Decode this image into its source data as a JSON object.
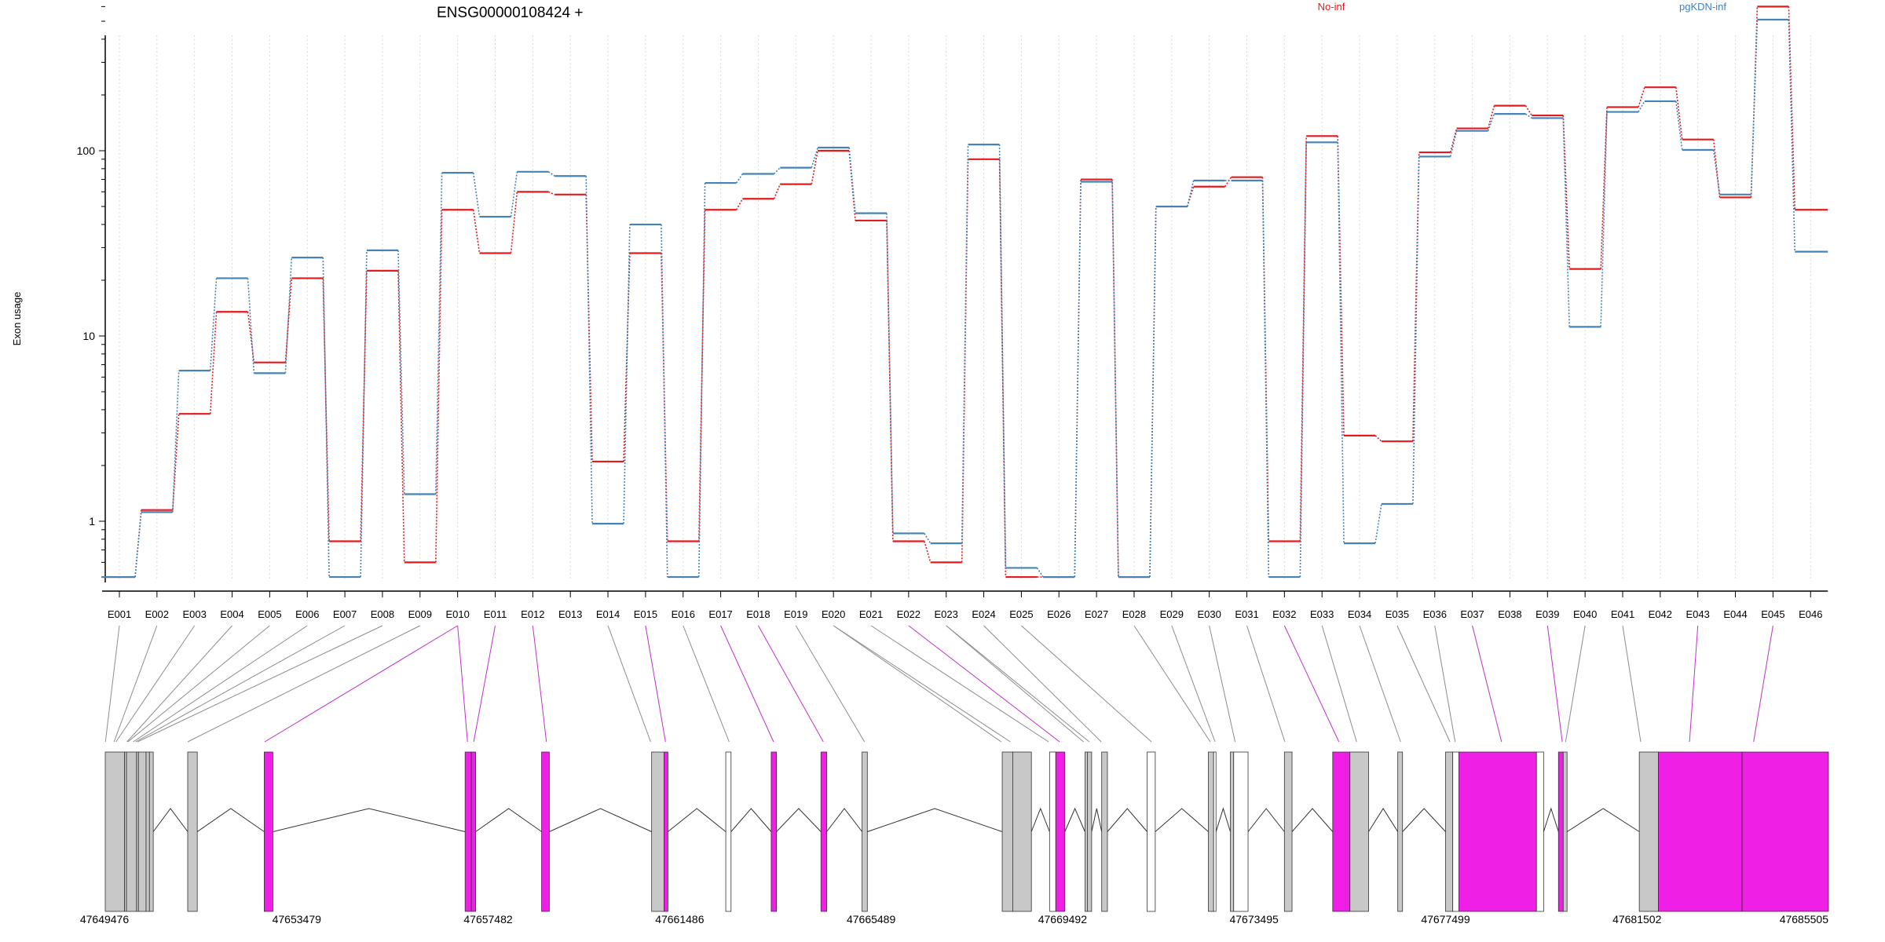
{
  "chart_data": {
    "type": "line",
    "title": "ENSG00000108424 +",
    "ylabel": "Exon usage",
    "y_scale": "log",
    "yticks": [
      1,
      10,
      100
    ],
    "ytick_labels": [
      "1",
      "10",
      "100"
    ],
    "ylim": [
      0.5,
      800
    ],
    "grid": "vertical dotted lines at each exon",
    "legend_position": "top-right",
    "categories": [
      "E001",
      "E002",
      "E003",
      "E004",
      "E005",
      "E006",
      "E007",
      "E008",
      "E009",
      "E010",
      "E011",
      "E012",
      "E013",
      "E014",
      "E015",
      "E016",
      "E017",
      "E018",
      "E019",
      "E020",
      "E021",
      "E022",
      "E023",
      "E024",
      "E025",
      "E026",
      "E027",
      "E028",
      "E029",
      "E030",
      "E031",
      "E032",
      "E033",
      "E034",
      "E035",
      "E036",
      "E037",
      "E038",
      "E039",
      "E040",
      "E041",
      "E042",
      "E043",
      "E044",
      "E045",
      "E046"
    ],
    "series": [
      {
        "name": "No-inf",
        "color": "#e41a1c",
        "values": [
          0.5,
          1.15,
          3.8,
          13.5,
          7.2,
          20.5,
          0.78,
          22.5,
          0.6,
          48,
          28,
          60,
          58,
          2.1,
          28,
          0.78,
          48,
          55,
          66,
          100,
          42,
          0.78,
          0.6,
          90,
          0.5,
          0.5,
          70,
          0.5,
          50,
          64,
          72,
          0.78,
          120,
          2.9,
          2.7,
          98,
          132,
          175,
          155,
          23,
          172,
          220,
          115,
          56,
          600,
          48
        ]
      },
      {
        "name": "pgKDN-inf",
        "color": "#4682b4",
        "values": [
          0.5,
          1.12,
          6.5,
          20.5,
          6.3,
          26.5,
          0.5,
          29,
          1.4,
          76,
          44,
          77,
          73,
          0.97,
          40,
          0.5,
          67,
          75,
          81,
          104,
          46,
          0.86,
          0.76,
          108,
          0.56,
          0.5,
          68,
          0.5,
          50,
          69,
          69,
          0.5,
          111,
          0.76,
          1.24,
          93,
          128,
          158,
          150,
          11.2,
          162,
          185,
          101,
          58,
          510,
          28.5
        ]
      }
    ],
    "gene_model": {
      "coordinate_labels": [
        "47649476",
        "47653479",
        "47657482",
        "47661486",
        "47665489",
        "47669492",
        "47673495",
        "47677499",
        "47681502",
        "47685505"
      ],
      "exon_colors": {
        "significant": "#f01fe5",
        "not_significant": "#c8c8c8",
        "untested": "#ffffff"
      },
      "exons": [
        {
          "start": 47649476,
          "end": 47649880,
          "status": "not_significant"
        },
        {
          "start": 47649880,
          "end": 47649920,
          "status": "not_significant"
        },
        {
          "start": 47649920,
          "end": 47650130,
          "status": "not_significant"
        },
        {
          "start": 47650130,
          "end": 47650170,
          "status": "not_significant"
        },
        {
          "start": 47650170,
          "end": 47650330,
          "status": "not_significant"
        },
        {
          "start": 47650330,
          "end": 47650400,
          "status": "not_significant"
        },
        {
          "start": 47650400,
          "end": 47650480,
          "status": "not_significant"
        },
        {
          "start": 47651200,
          "end": 47651400,
          "status": "not_significant"
        },
        {
          "start": 47652800,
          "end": 47652980,
          "status": "significant"
        },
        {
          "start": 47657000,
          "end": 47657130,
          "status": "significant"
        },
        {
          "start": 47657130,
          "end": 47657220,
          "status": "significant"
        },
        {
          "start": 47658600,
          "end": 47658760,
          "status": "significant"
        },
        {
          "start": 47660900,
          "end": 47661160,
          "status": "not_significant"
        },
        {
          "start": 47661160,
          "end": 47661240,
          "status": "significant"
        },
        {
          "start": 47662450,
          "end": 47662560,
          "status": "untested"
        },
        {
          "start": 47663400,
          "end": 47663510,
          "status": "significant"
        },
        {
          "start": 47664440,
          "end": 47664560,
          "status": "significant"
        },
        {
          "start": 47665300,
          "end": 47665410,
          "status": "not_significant"
        },
        {
          "start": 47668230,
          "end": 47668450,
          "status": "not_significant"
        },
        {
          "start": 47668450,
          "end": 47668840,
          "status": "not_significant"
        },
        {
          "start": 47669220,
          "end": 47669350,
          "status": "untested"
        },
        {
          "start": 47669350,
          "end": 47669540,
          "status": "significant"
        },
        {
          "start": 47669960,
          "end": 47670010,
          "status": "not_significant"
        },
        {
          "start": 47670010,
          "end": 47670100,
          "status": "not_significant"
        },
        {
          "start": 47670310,
          "end": 47670430,
          "status": "not_significant"
        },
        {
          "start": 47671260,
          "end": 47671430,
          "status": "untested"
        },
        {
          "start": 47672540,
          "end": 47672650,
          "status": "not_significant"
        },
        {
          "start": 47672650,
          "end": 47672700,
          "status": "untested"
        },
        {
          "start": 47673000,
          "end": 47673070,
          "status": "not_significant"
        },
        {
          "start": 47673070,
          "end": 47673370,
          "status": "untested"
        },
        {
          "start": 47674130,
          "end": 47674290,
          "status": "not_significant"
        },
        {
          "start": 47675140,
          "end": 47675500,
          "status": "significant"
        },
        {
          "start": 47675500,
          "end": 47675890,
          "status": "not_significant"
        },
        {
          "start": 47676500,
          "end": 47676600,
          "status": "not_significant"
        },
        {
          "start": 47677500,
          "end": 47677650,
          "status": "not_significant"
        },
        {
          "start": 47677650,
          "end": 47677780,
          "status": "untested"
        },
        {
          "start": 47677780,
          "end": 47679400,
          "status": "significant"
        },
        {
          "start": 47679400,
          "end": 47679550,
          "status": "untested"
        },
        {
          "start": 47679860,
          "end": 47679960,
          "status": "significant"
        },
        {
          "start": 47679960,
          "end": 47680040,
          "status": "not_significant"
        },
        {
          "start": 47681550,
          "end": 47681950,
          "status": "not_significant"
        },
        {
          "start": 47681950,
          "end": 47683700,
          "status": "significant"
        },
        {
          "start": 47683700,
          "end": 47685505,
          "status": "significant"
        }
      ],
      "mapping_targets": [
        47649480,
        47649660,
        47649700,
        47649930,
        47649950,
        47650060,
        47650110,
        47650150,
        47651200,
        47652810,
        47657050,
        47657180,
        47658700,
        47660880,
        47661190,
        47662520,
        47663450,
        47664490,
        47665350,
        47668210,
        47668400,
        47669200,
        47669430,
        47669930,
        47670050,
        47670300,
        47671350,
        47672580,
        47672680,
        47673100,
        47674140,
        47675270,
        47675640,
        47676560,
        47677590,
        47677700,
        47678670,
        47679940,
        47680010,
        47681580,
        47682600,
        47683940
      ],
      "mapping_sources": [
        0,
        1,
        2,
        3,
        4,
        5,
        6,
        7,
        8,
        9,
        9,
        10,
        11,
        13,
        14,
        15,
        16,
        17,
        18,
        19,
        19,
        20,
        21,
        22,
        22,
        23,
        24,
        27,
        28,
        29,
        30,
        31,
        32,
        33,
        34,
        35,
        36,
        38,
        39,
        40,
        42,
        44
      ]
    }
  }
}
